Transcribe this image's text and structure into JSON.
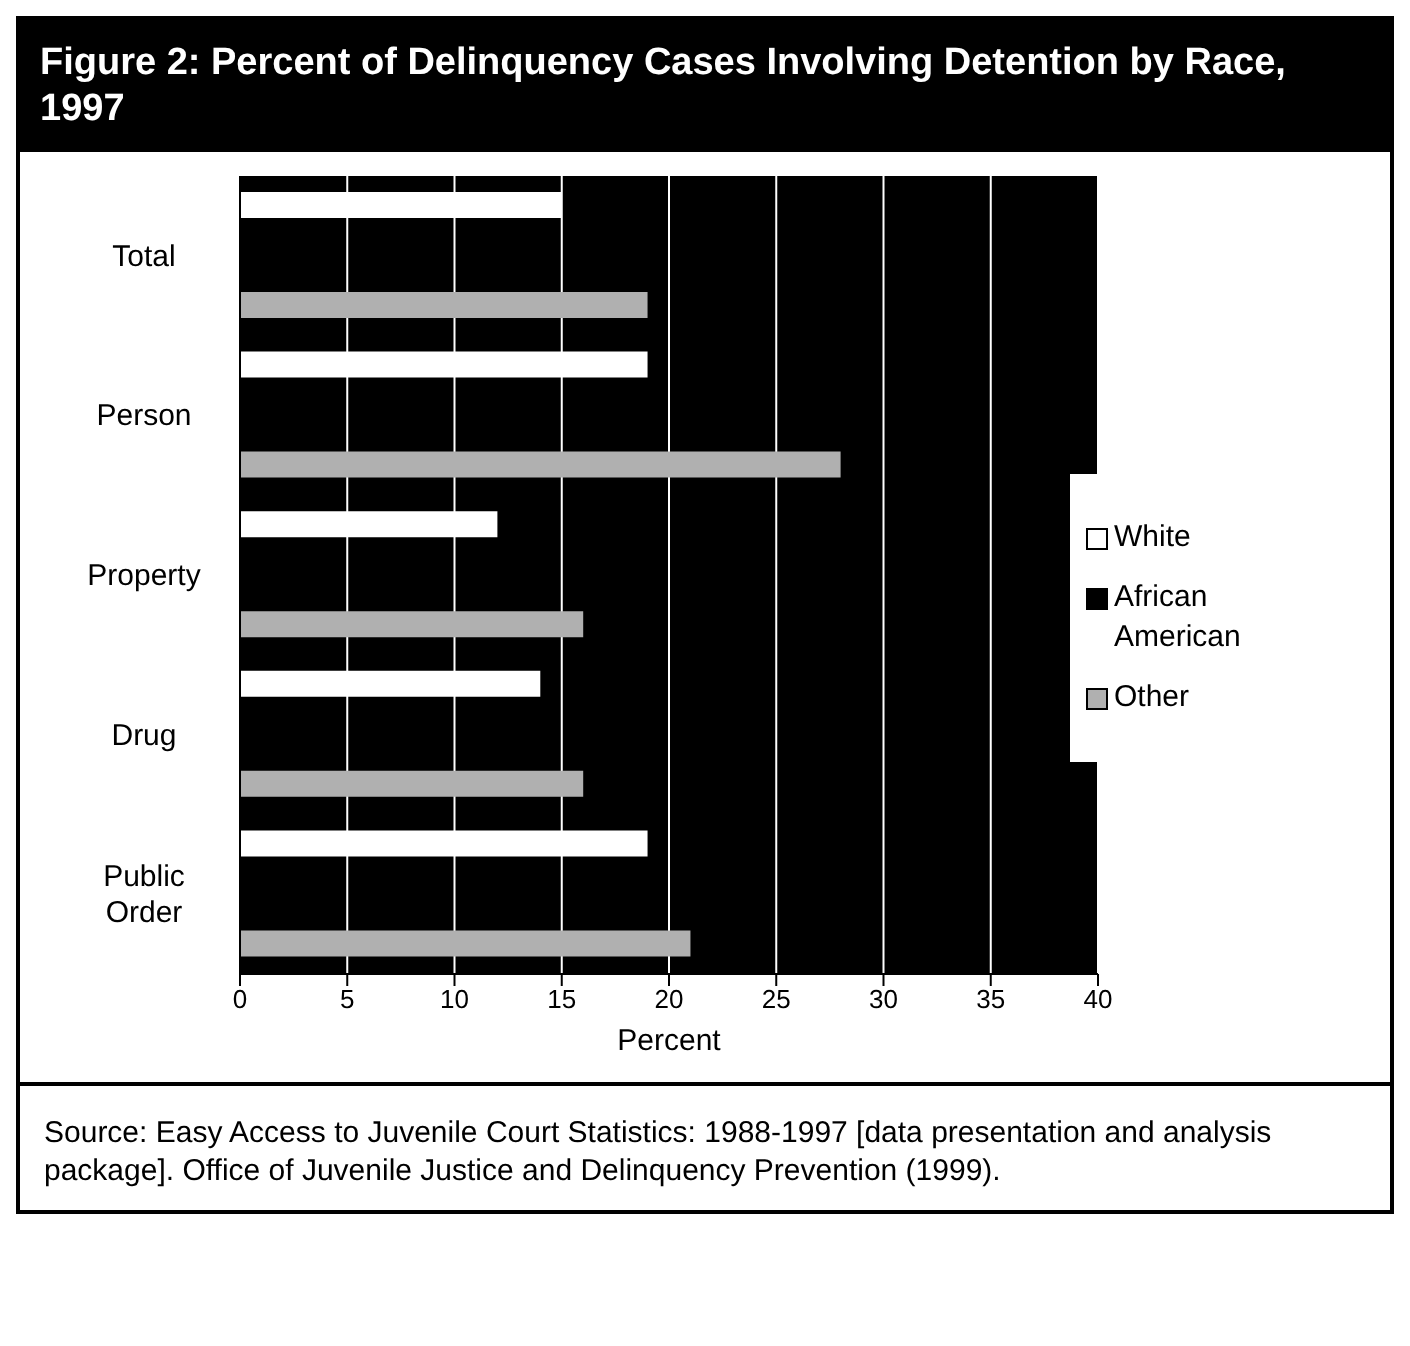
{
  "chart_data": {
    "type": "bar",
    "orientation": "horizontal",
    "title": "Figure 2:  Percent of Delinquency Cases Involving Detention by Race, 1997",
    "categories": [
      "Total",
      "Person",
      "Property",
      "Drug",
      "Public Order"
    ],
    "series": [
      {
        "name": "White",
        "color": "#ffffff",
        "values": [
          15,
          19,
          12,
          14,
          19
        ]
      },
      {
        "name": "African American",
        "color": "#000000",
        "values": [
          null,
          null,
          null,
          null,
          null
        ]
      },
      {
        "name": "Other",
        "color": "#b0b0b0",
        "values": [
          19,
          28,
          16,
          16,
          21
        ]
      }
    ],
    "xlabel": "Percent",
    "xlim": [
      0,
      40
    ],
    "xticks": [
      0,
      5,
      10,
      15,
      20,
      25,
      30,
      35,
      40
    ],
    "grid": "x",
    "legend": "right",
    "annotations": [
      "Source: Easy Access to Juvenile Court Statistics: 1988-1997 [data presentation and analysis package].  Office of Juvenile Justice and Delinquency Prevention (1999)."
    ]
  }
}
